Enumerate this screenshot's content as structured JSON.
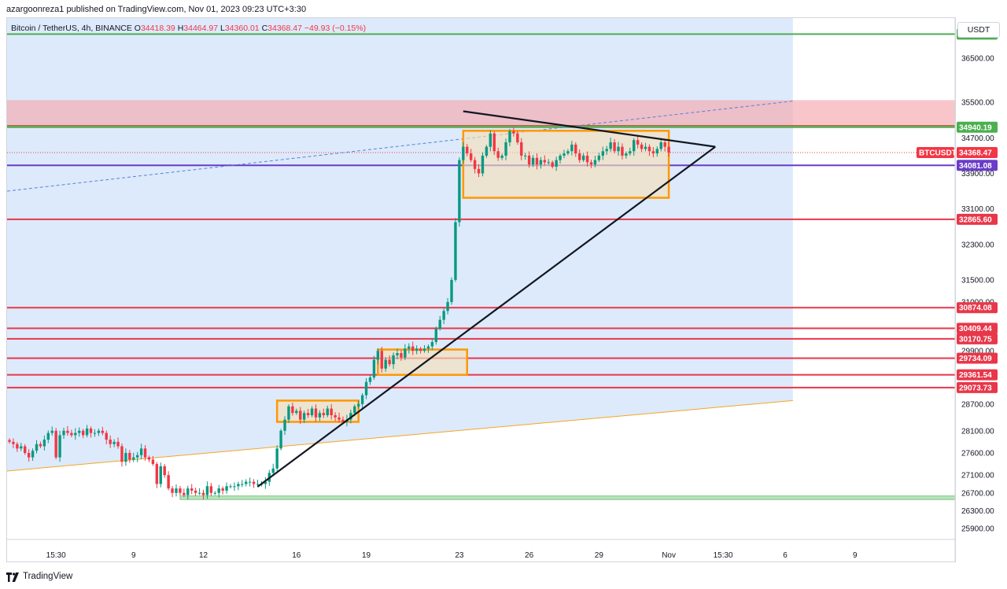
{
  "header": {
    "publish_text": "azargoonreza1 published on TradingView.com, Nov 01, 2023 09:23 UTC+3:30"
  },
  "legend": {
    "symbol": "Bitcoin / TetherUS, 4h, BINANCE",
    "o_label": "O",
    "o_value": "34418.39",
    "h_label": "H",
    "h_value": "34464.97",
    "l_label": "L",
    "l_value": "34360.01",
    "c_label": "C",
    "c_value": "34368.47",
    "change": "−49.93 (−0.15%)"
  },
  "currency": "USDT",
  "footer": {
    "brand": "TradingView"
  },
  "colors": {
    "up": "#089981",
    "down": "#f23645",
    "zone_blue": "#dbe9fb",
    "resistance_zone": "#f7c2c6",
    "box": "#ff9800",
    "line_red": "#e8374a",
    "line_green": "#4caf50",
    "line_purple": "#6a3cc8",
    "line_brown": "#a4683a"
  },
  "chart_data": {
    "type": "candlestick",
    "symbol": "BTCUSDT",
    "timeframe": "4h",
    "ylim": [
      25650,
      37400
    ],
    "x_ticks": [
      {
        "label": "15:30",
        "bar": 12
      },
      {
        "label": "9",
        "bar": 32
      },
      {
        "label": "12",
        "bar": 50
      },
      {
        "label": "16",
        "bar": 74
      },
      {
        "label": "19",
        "bar": 92
      },
      {
        "label": "23",
        "bar": 116
      },
      {
        "label": "26",
        "bar": 134
      },
      {
        "label": "29",
        "bar": 152
      },
      {
        "label": "Nov",
        "bar": 170
      },
      {
        "label": "15:30",
        "bar": 184
      },
      {
        "label": "6",
        "bar": 200
      },
      {
        "label": "9",
        "bar": 218
      }
    ],
    "y_ticks": [
      36500,
      35500,
      34700,
      33900,
      33100,
      32300,
      31500,
      31000,
      29900,
      28700,
      28100,
      27600,
      27100,
      26700,
      26300,
      25900
    ],
    "price_levels": [
      {
        "label": "37038.29",
        "value": 37038.29,
        "color": "#4caf50"
      },
      {
        "label": "34940.19",
        "value": 34940.19,
        "color": "#4caf50"
      },
      {
        "label": "34081.08",
        "value": 34081.08,
        "color": "#6a3cc8"
      },
      {
        "label": "32865.60",
        "value": 32865.6,
        "color": "#e8374a"
      },
      {
        "label": "30874.08",
        "value": 30874.08,
        "color": "#e8374a"
      },
      {
        "label": "30409.44",
        "value": 30409.44,
        "color": "#e8374a"
      },
      {
        "label": "30170.75",
        "value": 30170.75,
        "color": "#e8374a"
      },
      {
        "label": "29734.09",
        "value": 29734.09,
        "color": "#e8374a"
      },
      {
        "label": "29361.54",
        "value": 29361.54,
        "color": "#e8374a"
      },
      {
        "label": "29073.73",
        "value": 29073.73,
        "color": "#e8374a"
      }
    ],
    "last_price": {
      "label": "BTCUSDT",
      "value": "34368.47",
      "color": "#f23645"
    },
    "zones": [
      {
        "name": "resistance",
        "y1": 34940,
        "y2": 35550
      },
      {
        "name": "support",
        "y1": 26550,
        "y2": 26630
      }
    ],
    "boxes": [
      {
        "x1": 69,
        "x2": 90,
        "y1": 28300,
        "y2": 28780
      },
      {
        "x1": 95,
        "x2": 118,
        "y1": 29360,
        "y2": 29930
      },
      {
        "x1": 117,
        "x2": 170,
        "y1": 33350,
        "y2": 34860
      }
    ],
    "trendlines": [
      {
        "name": "triangle-top",
        "x1": 117,
        "y1": 35300,
        "x2": 182,
        "y2": 34500
      },
      {
        "name": "triangle-base",
        "x1": 64,
        "y1": 26840,
        "x2": 182,
        "y2": 34500
      },
      {
        "name": "long-support",
        "x1": 0,
        "y1": 27200,
        "x2": 202,
        "y2": 28780
      },
      {
        "name": "dashed-channel",
        "x1": 0,
        "y1": 33500,
        "x2": 202,
        "y2": 35530
      }
    ],
    "candles_close": [
      27850,
      27800,
      27700,
      27750,
      27600,
      27500,
      27650,
      27800,
      27750,
      27900,
      28050,
      28100,
      27500,
      28000,
      28100,
      28050,
      28000,
      28050,
      28100,
      28000,
      28150,
      28050,
      28050,
      28100,
      28050,
      27900,
      27800,
      27850,
      27750,
      27400,
      27600,
      27450,
      27500,
      27550,
      27700,
      27500,
      27450,
      27350,
      26900,
      27300,
      27100,
      26800,
      26700,
      26800,
      26700,
      26650,
      26800,
      26750,
      26700,
      26700,
      26650,
      26850,
      26700,
      26700,
      26800,
      26750,
      26850,
      26850,
      26850,
      26900,
      26900,
      26950,
      26950,
      26900,
      26900,
      26900,
      26950,
      27150,
      27250,
      27700,
      28100,
      28350,
      28650,
      28500,
      28550,
      28350,
      28500,
      28450,
      28600,
      28400,
      28500,
      28450,
      28600,
      28450,
      28400,
      28350,
      28300,
      28350,
      28500,
      28650,
      28700,
      28900,
      29200,
      29300,
      29700,
      29900,
      29500,
      29700,
      29600,
      29800,
      29850,
      29750,
      29950,
      30000,
      29900,
      29950,
      29900,
      29950,
      30000,
      30100,
      30400,
      30600,
      30800,
      31000,
      31500,
      32800,
      34200,
      34500,
      34350,
      34200,
      34000,
      33900,
      34300,
      34500,
      34800,
      34400,
      34250,
      34300,
      34600,
      34850,
      34800,
      34600,
      34300,
      34300,
      34100,
      34250,
      34100,
      34200,
      34150,
      34150,
      34050,
      34200,
      34300,
      34350,
      34400,
      34550,
      34350,
      34200,
      34300,
      34150,
      34100,
      34200,
      34300,
      34400,
      34450,
      34600,
      34400,
      34500,
      34300,
      34350,
      34400,
      34650,
      34550,
      34450,
      34500,
      34400,
      34350,
      34450,
      34600,
      34500,
      34368
    ]
  }
}
